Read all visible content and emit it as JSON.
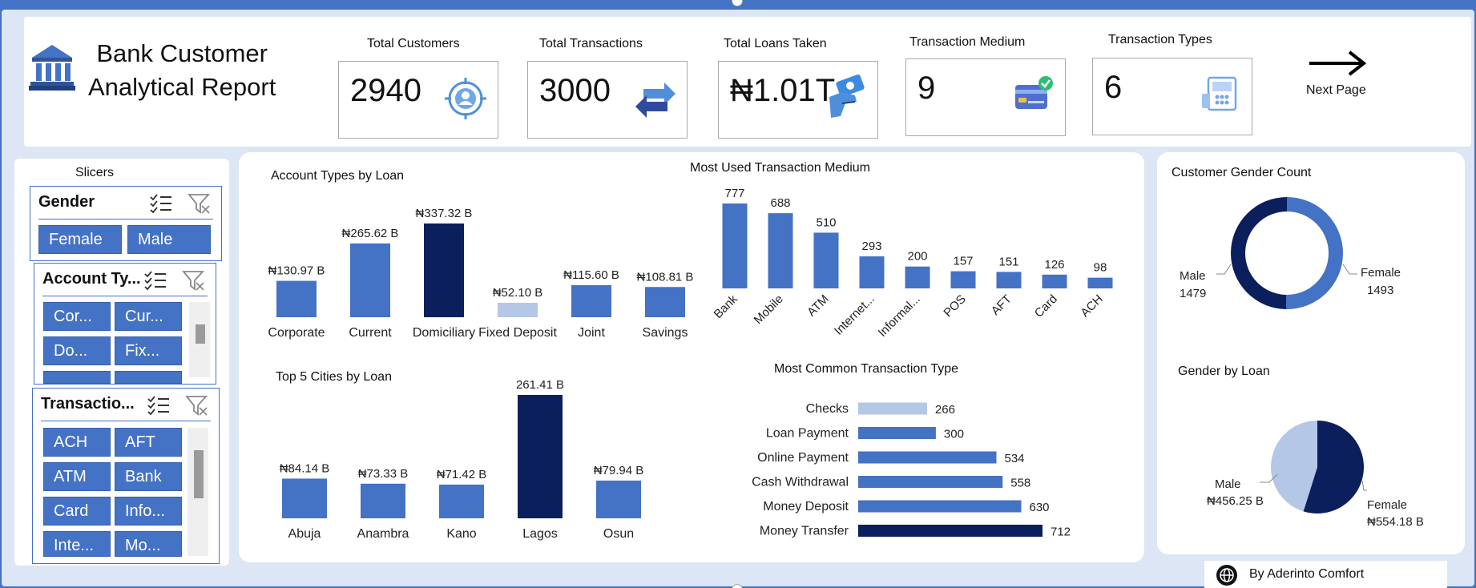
{
  "header": {
    "title_line1": "Bank Customer",
    "title_line2": "Analytical Report",
    "next_page_label": "Next Page"
  },
  "kpis": [
    {
      "label": "Total Customers",
      "value": "2940",
      "icon": "target-user-icon"
    },
    {
      "label": "Total Transactions",
      "value": "3000",
      "icon": "transfer-arrows-icon"
    },
    {
      "label": "Total Loans Taken",
      "value": "₦1.01T",
      "icon": "money-hand-icon"
    },
    {
      "label": "Transaction Medium",
      "value": "9",
      "icon": "credit-card-icon"
    },
    {
      "label": "Transaction Types",
      "value": "6",
      "icon": "atm-icon"
    }
  ],
  "slicers": {
    "title": "Slicers",
    "gender": {
      "title": "Gender",
      "options": [
        "Female",
        "Male"
      ]
    },
    "account_type": {
      "title": "Account Ty...",
      "options": [
        "Cor...",
        "Cur...",
        "Do...",
        "Fix..."
      ]
    },
    "transaction": {
      "title": "Transactio...",
      "options": [
        "ACH",
        "AFT",
        "ATM",
        "Bank",
        "Card",
        "Info...",
        "Inte...",
        "Mo..."
      ]
    }
  },
  "credit": "By Aderinto Comfort",
  "colors": {
    "primary": "#4472c4",
    "dark": "#0b1f5c",
    "light": "#b4c7e7"
  },
  "chart_data": [
    {
      "type": "bar",
      "title": "Account Types by Loan",
      "categories": [
        "Corporate",
        "Current",
        "Domiciliary",
        "Fixed Deposit",
        "Joint",
        "Savings"
      ],
      "values": [
        130.97,
        265.62,
        337.32,
        52.1,
        115.6,
        108.81
      ],
      "labels": [
        "₦130.97 B",
        "₦265.62 B",
        "₦337.32 B",
        "₦52.10 B",
        "₦115.60 B",
        "₦108.81 B"
      ],
      "colors": [
        "#4472c4",
        "#4472c4",
        "#0b1f5c",
        "#b4c7e7",
        "#4472c4",
        "#4472c4"
      ]
    },
    {
      "type": "bar",
      "title": "Most Used Transaction Medium",
      "categories": [
        "Bank",
        "Mobile",
        "ATM",
        "Internet...",
        "Informal...",
        "POS",
        "AFT",
        "Card",
        "ACH"
      ],
      "values": [
        777,
        688,
        510,
        293,
        200,
        157,
        151,
        126,
        98
      ]
    },
    {
      "type": "bar",
      "title": "Top 5 Cities by Loan",
      "categories": [
        "Abuja",
        "Anambra",
        "Kano",
        "Lagos",
        "Osun"
      ],
      "values": [
        84.14,
        73.33,
        71.42,
        261.41,
        79.94
      ],
      "labels": [
        "₦84.14 B",
        "₦73.33 B",
        "₦71.42 B",
        "261.41 B",
        "₦79.94 B"
      ],
      "colors": [
        "#4472c4",
        "#4472c4",
        "#4472c4",
        "#0b1f5c",
        "#4472c4"
      ]
    },
    {
      "type": "bar",
      "orientation": "horizontal",
      "title": "Most Common Transaction Type",
      "categories": [
        "Checks",
        "Loan Payment",
        "Online Payment",
        "Cash Withdrawal",
        "Money Deposit",
        "Money Transfer"
      ],
      "values": [
        266,
        300,
        534,
        558,
        630,
        712
      ],
      "colors": [
        "#b4c7e7",
        "#4472c4",
        "#4472c4",
        "#4472c4",
        "#4472c4",
        "#0b1f5c"
      ]
    },
    {
      "type": "pie",
      "variant": "donut",
      "title": "Customer Gender Count",
      "categories": [
        "Female",
        "Male"
      ],
      "values": [
        1493,
        1479
      ],
      "colors": [
        "#4472c4",
        "#0b1f5c"
      ]
    },
    {
      "type": "pie",
      "title": "Gender by Loan",
      "categories": [
        "Female",
        "Male"
      ],
      "values": [
        554.18,
        456.25
      ],
      "labels": [
        "₦554.18 B",
        "₦456.25 B"
      ],
      "colors": [
        "#0b1f5c",
        "#b4c7e7"
      ]
    }
  ]
}
